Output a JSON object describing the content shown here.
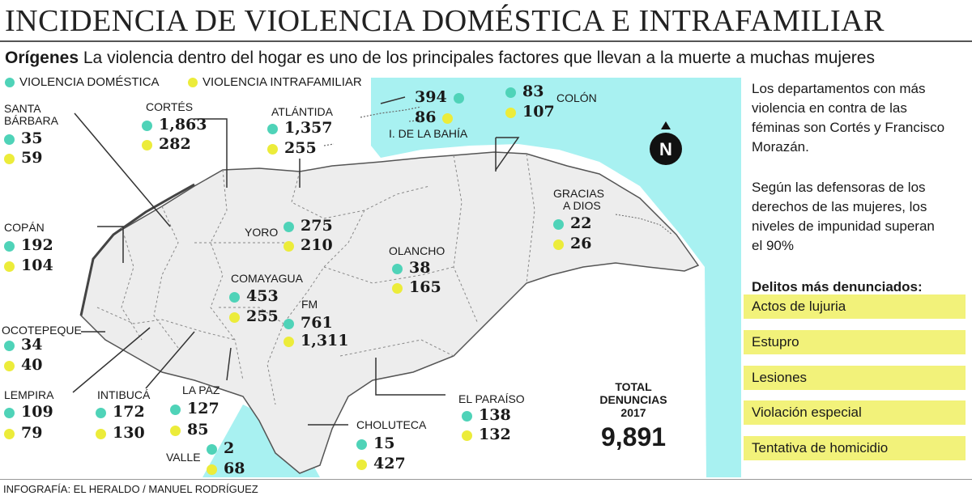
{
  "title": "INCIDENCIA DE VIOLENCIA DOMÉSTICA E INTRAFAMILIAR",
  "subtitle": {
    "bold": "Orígenes",
    "text": " La violencia dentro del hogar es uno de los principales factores que llevan a la muerte a muchas mujeres"
  },
  "legend": {
    "domestic": "VIOLENCIA DOMÉSTICA",
    "intrafamily": "VIOLENCIA INTRAFAMILIAR"
  },
  "colors": {
    "domestic": "#4fd3b8",
    "intrafamily": "#ecec3a",
    "sea": "#a8f1f1",
    "land": "#ededed",
    "highlight": "#f2f27a"
  },
  "regions": [
    {
      "name": "SANTA BÁRBARA",
      "name_line1": "SANTA",
      "name_line2": "BÁRBARA",
      "domestic": "35",
      "intrafamily": "59"
    },
    {
      "name": "CORTÉS",
      "domestic": "1,863",
      "intrafamily": "282"
    },
    {
      "name": "ATLÁNTIDA",
      "domestic": "1,357",
      "intrafamily": "255"
    },
    {
      "name": "I. DE LA BAHÍA",
      "domestic": "394",
      "intrafamily": "86"
    },
    {
      "name": "COLÓN",
      "domestic": "83",
      "intrafamily": "107"
    },
    {
      "name": "GRACIAS A DIOS",
      "name_line1": "GRACIAS",
      "name_line2": "A DIOS",
      "domestic": "22",
      "intrafamily": "26"
    },
    {
      "name": "COPÁN",
      "domestic": "192",
      "intrafamily": "104"
    },
    {
      "name": "YORO",
      "domestic": "275",
      "intrafamily": "210"
    },
    {
      "name": "OLANCHO",
      "domestic": "38",
      "intrafamily": "165"
    },
    {
      "name": "COMAYAGUA",
      "domestic": "453",
      "intrafamily": "255"
    },
    {
      "name": "FM",
      "domestic": "761",
      "intrafamily": "1,311"
    },
    {
      "name": "OCOTEPEQUE",
      "domestic": "34",
      "intrafamily": "40"
    },
    {
      "name": "LEMPIRA",
      "domestic": "109",
      "intrafamily": "79"
    },
    {
      "name": "INTIBUCÁ",
      "domestic": "172",
      "intrafamily": "130"
    },
    {
      "name": "LA PAZ",
      "domestic": "127",
      "intrafamily": "85"
    },
    {
      "name": "VALLE",
      "domestic": "2",
      "intrafamily": "68"
    },
    {
      "name": "CHOLUTECA",
      "domestic": "15",
      "intrafamily": "427"
    },
    {
      "name": "EL PARAÍSO",
      "domestic": "138",
      "intrafamily": "132"
    }
  ],
  "total": {
    "line1": "TOTAL",
    "line2": "DENUNCIAS",
    "line3": "2017",
    "value": "9,891"
  },
  "north_label": "N",
  "side_text": {
    "p1": "Los departamentos con más violencia en contra de las féminas son Cortés y Francisco Morazán.",
    "p2": "Según las defensoras de los derechos de las mujeres, los niveles de impunidad superan el 90%"
  },
  "crimes_title": "Delitos más denunciados:",
  "crimes": [
    "Actos de lujuria",
    "Estupro",
    "Lesiones",
    "Violación especial",
    "Tentativa de homicidio"
  ],
  "credit": "INFOGRAFÍA: EL HERALDO / MANUEL RODRÍGUEZ"
}
